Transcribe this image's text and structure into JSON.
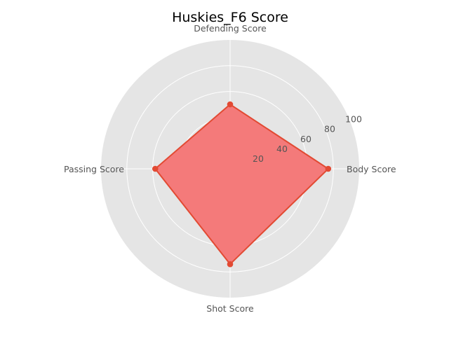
{
  "chart_data": {
    "type": "radar",
    "title": "Huskies_F6 Score",
    "axes": [
      "Body Score",
      "Defending Score",
      "Passing Score",
      "Shot Score"
    ],
    "series": [
      {
        "values": [
          76,
          50,
          58,
          74
        ],
        "color": "#e24a33",
        "fill": "#f47a7a"
      }
    ],
    "rlim": [
      0,
      100
    ],
    "r_ticks": [
      20,
      40,
      60,
      80,
      100
    ],
    "grid": true,
    "background": "#e5e5e5",
    "grid_color": "#ffffff"
  }
}
